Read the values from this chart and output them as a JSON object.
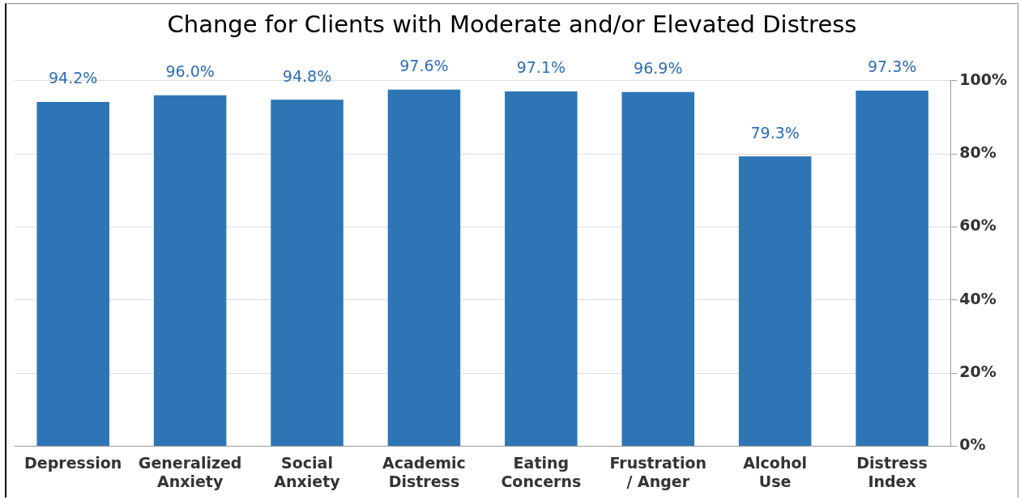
{
  "chart_data": {
    "type": "bar",
    "title": "Change for Clients with Moderate and/or Elevated Distress",
    "categories": [
      "Depression",
      "Generalized Anxiety",
      "Social Anxiety",
      "Academic Distress",
      "Eating Concerns",
      "Frustration / Anger",
      "Alcohol Use",
      "Distress Index"
    ],
    "values": [
      94.2,
      96.0,
      94.8,
      97.6,
      97.1,
      96.9,
      79.3,
      97.3
    ],
    "value_labels": [
      "94.2%",
      "96.0%",
      "94.8%",
      "97.6%",
      "97.1%",
      "96.9%",
      "79.3%",
      "97.3%"
    ],
    "color": "#2e75b6",
    "ylim": [
      0,
      100
    ],
    "yticks": [
      {
        "value": 0,
        "label": "0%"
      },
      {
        "value": 20,
        "label": "20%"
      },
      {
        "value": 40,
        "label": "40%"
      },
      {
        "value": 60,
        "label": "60%"
      },
      {
        "value": 80,
        "label": "80%"
      },
      {
        "value": 100,
        "label": "100%"
      }
    ],
    "grid": "y"
  }
}
